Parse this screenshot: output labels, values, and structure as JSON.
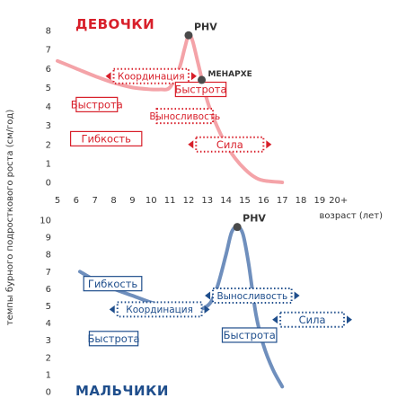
{
  "x_axis": {
    "label": "возраст (лет)",
    "ticks": [
      "5",
      "6",
      "7",
      "8",
      "9",
      "10",
      "11",
      "12",
      "13",
      "14",
      "15",
      "16",
      "17",
      "18",
      "19",
      "20+"
    ]
  },
  "y_axis_label": "темпы бурного подросткового роста (см/год)",
  "colors": {
    "girls": "#d81f2a",
    "girls_curve": "#f4a3a8",
    "boys": "#1f4e8c",
    "boys_curve": "#6f8fbd",
    "point": "#4a4a4a"
  },
  "chart_data": [
    {
      "type": "line",
      "title": "ДЕВОЧКИ",
      "x_ticks": [
        "5",
        "6",
        "7",
        "8",
        "9",
        "10",
        "11",
        "12",
        "13",
        "14",
        "15",
        "16",
        "17",
        "18",
        "19",
        "20+"
      ],
      "y_ticks": [
        "0",
        "1",
        "2",
        "3",
        "4",
        "5",
        "6",
        "7",
        "8"
      ],
      "ylim": [
        0,
        8
      ],
      "xlim": [
        5,
        20
      ],
      "series": [
        {
          "x": [
            5,
            6,
            7,
            8,
            9,
            10,
            10.5,
            11,
            11.5,
            11.8,
            12,
            12.2,
            12.5,
            13,
            13.5,
            14,
            14.5,
            15,
            15.5,
            16,
            17
          ],
          "y": [
            6.4,
            6.0,
            5.6,
            5.25,
            5.0,
            4.9,
            4.9,
            5.0,
            6.0,
            7.1,
            7.75,
            7.5,
            6.3,
            4.3,
            3.0,
            2.0,
            1.25,
            0.7,
            0.3,
            0.1,
            0.0
          ]
        }
      ],
      "markers": [
        {
          "label": "PHV",
          "x": 12,
          "y": 7.75
        },
        {
          "label": "МЕНАРХЕ",
          "x": 12.7,
          "y": 5.4
        }
      ],
      "annotations": [
        {
          "label": "Координация",
          "style": "dotted",
          "x_from": 8,
          "x_to": 12,
          "y": 5.6,
          "arrows": true
        },
        {
          "label": "Быстрота",
          "style": "solid",
          "x_from": 11.3,
          "x_to": 14,
          "y": 4.9,
          "arrows": false
        },
        {
          "label": "Быстрота",
          "style": "solid",
          "x_from": 6,
          "x_to": 8.2,
          "y": 4.1,
          "arrows": false
        },
        {
          "label": "Выносливость",
          "style": "dotted",
          "x_from": 10.3,
          "x_to": 13.3,
          "y": 3.5,
          "arrows": false
        },
        {
          "label": "Гибкость",
          "style": "solid",
          "x_from": 5.7,
          "x_to": 9.5,
          "y": 2.3,
          "arrows": false
        },
        {
          "label": "Сила",
          "style": "dotted",
          "x_from": 12.4,
          "x_to": 16,
          "y": 2.0,
          "arrows": true
        }
      ]
    },
    {
      "type": "line",
      "title": "МАЛЬЧИКИ",
      "x_ticks": [
        "5",
        "6",
        "7",
        "8",
        "9",
        "10",
        "11",
        "12",
        "13",
        "14",
        "15",
        "16",
        "17",
        "18",
        "19",
        "20+"
      ],
      "y_ticks": [
        "0",
        "1",
        "2",
        "3",
        "4",
        "5",
        "6",
        "7",
        "8",
        "9",
        "10"
      ],
      "ylim": [
        0,
        10
      ],
      "xlim": [
        5,
        20
      ],
      "series": [
        {
          "x": [
            6.2,
            7,
            8,
            9,
            10,
            11,
            12,
            13,
            13.5,
            14,
            14.3,
            14.6,
            14.9,
            15.2,
            15.6,
            16,
            16.5,
            17
          ],
          "y": [
            7.0,
            6.5,
            6.0,
            5.6,
            5.2,
            4.9,
            4.7,
            5.0,
            6.0,
            8.0,
            9.3,
            9.6,
            9.2,
            7.5,
            4.5,
            2.7,
            1.3,
            0.3
          ]
        }
      ],
      "markers": [
        {
          "label": "PHV",
          "x": 14.6,
          "y": 9.6
        }
      ],
      "annotations": [
        {
          "label": "Гибкость",
          "style": "solid",
          "x_from": 6.4,
          "x_to": 9.5,
          "y": 6.3,
          "arrows": false
        },
        {
          "label": "Выносливость",
          "style": "dotted",
          "x_from": 13.3,
          "x_to": 17.5,
          "y": 5.6,
          "arrows": true
        },
        {
          "label": "Координация",
          "style": "dotted",
          "x_from": 8.2,
          "x_to": 12.7,
          "y": 4.8,
          "arrows": true
        },
        {
          "label": "Сила",
          "style": "dotted",
          "x_from": 16.9,
          "x_to": 20.3,
          "y": 4.2,
          "arrows": true
        },
        {
          "label": "Быстрота",
          "style": "solid",
          "x_from": 6.7,
          "x_to": 9.3,
          "y": 3.1,
          "arrows": false
        },
        {
          "label": "Быстрота",
          "style": "solid",
          "x_from": 13.8,
          "x_to": 16.7,
          "y": 3.3,
          "arrows": false
        }
      ]
    }
  ]
}
